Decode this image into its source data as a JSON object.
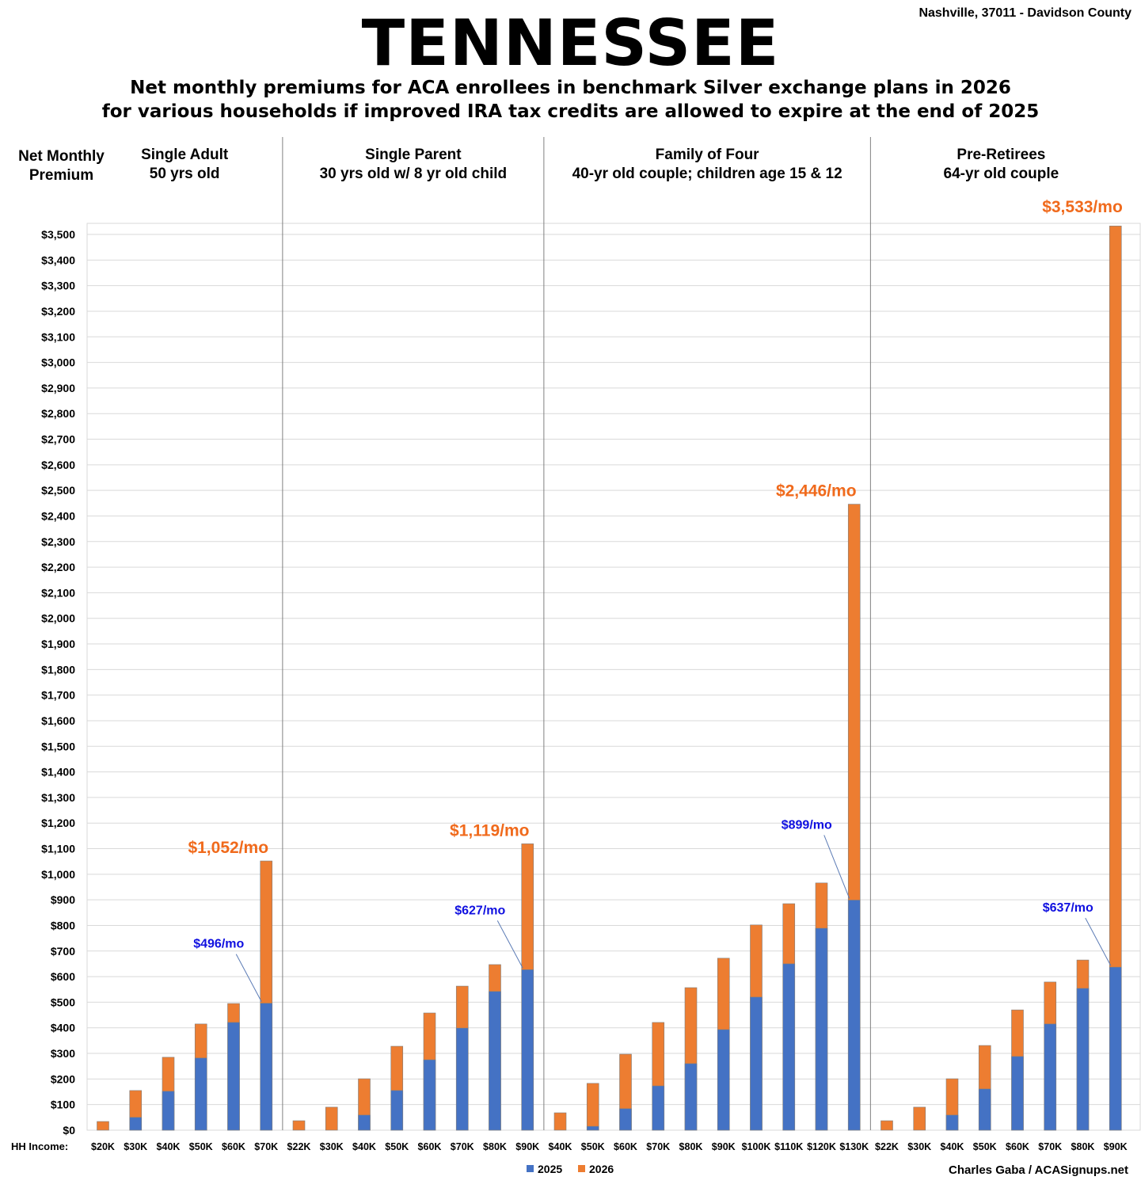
{
  "header": {
    "title": "TENNESSEE",
    "location": "Nashville, 37011 - Davidson County",
    "subtitle_line1": "Net monthly premiums for ACA enrollees in benchmark Silver exchange plans in 2026",
    "subtitle_line2": "for various households if improved IRA tax credits are allowed to expire at the end of 2025"
  },
  "credit": "Charles Gaba / ACASignups.net",
  "colors": {
    "s2025": "#4472C4",
    "s2026": "#ED7D31",
    "annot_orange": "#F06A1C",
    "annot_blue": "#1010E0"
  },
  "chart_data": {
    "type": "bar",
    "stacked": "overlay",
    "title": "TENNESSEE",
    "ylabel_line1": "Net Monthly",
    "ylabel_line2": "Premium",
    "xlabel": "HH Income:",
    "ylim": [
      0,
      3500
    ],
    "ytick_step": 100,
    "grid": true,
    "legend": {
      "placement": "bottom-center",
      "entries": [
        "2025",
        "2026"
      ]
    },
    "panels": [
      {
        "line1": "Single Adult",
        "line2": "50 yrs old",
        "categories": [
          "$20K",
          "$30K",
          "$40K",
          "$50K",
          "$60K",
          "$70K"
        ],
        "s2025": [
          0,
          50,
          152,
          282,
          421,
          496
        ],
        "s2026": [
          34,
          155,
          285,
          415,
          495,
          1052
        ],
        "annot_2026": "$1,052/mo",
        "annot_2025": "$496/mo"
      },
      {
        "line1": "Single Parent",
        "line2": "30 yrs old w/ 8 yr old child",
        "categories": [
          "$22K",
          "$30K",
          "$40K",
          "$50K",
          "$60K",
          "$70K",
          "$80K",
          "$90K"
        ],
        "s2025": [
          0,
          0,
          59,
          155,
          275,
          399,
          542,
          627
        ],
        "s2026": [
          37,
          90,
          201,
          328,
          458,
          563,
          647,
          1119
        ],
        "annot_2026": "$1,119/mo",
        "annot_2025": "$627/mo"
      },
      {
        "line1": "Family of Four",
        "line2": "40-yr old couple; children age 15 & 12",
        "categories": [
          "$40K",
          "$50K",
          "$60K",
          "$70K",
          "$80K",
          "$90K",
          "$100K",
          "$110K",
          "$120K",
          "$130K"
        ],
        "s2025": [
          0,
          15,
          84,
          173,
          260,
          393,
          520,
          650,
          789,
          899
        ],
        "s2026": [
          68,
          183,
          297,
          421,
          557,
          672,
          802,
          885,
          966,
          2446
        ],
        "annot_2026": "$2,446/mo",
        "annot_2025": "$899/mo"
      },
      {
        "line1": "Pre-Retirees",
        "line2": "64-yr old couple",
        "categories": [
          "$22K",
          "$30K",
          "$40K",
          "$50K",
          "$60K",
          "$70K",
          "$80K",
          "$90K"
        ],
        "s2025": [
          0,
          0,
          59,
          161,
          288,
          415,
          554,
          637
        ],
        "s2026": [
          37,
          90,
          201,
          331,
          470,
          579,
          665,
          3533
        ],
        "annot_2026": "$3,533/mo",
        "annot_2025": "$637/mo"
      }
    ]
  }
}
